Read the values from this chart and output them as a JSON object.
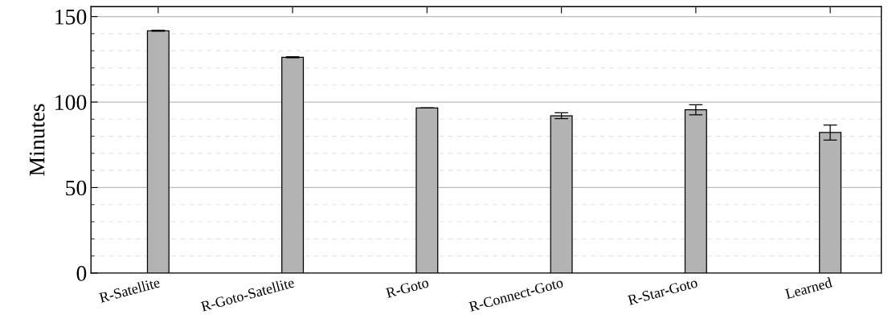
{
  "chart_data": {
    "type": "bar",
    "ylabel": "Minutes",
    "categories": [
      "R-Satellite",
      "R-Goto-Satellite",
      "R-Goto",
      "R-Connect-Goto",
      "R-Star-Goto",
      "Learned"
    ],
    "values": [
      141.7,
      126.2,
      96.5,
      92,
      95.5,
      82.2
    ],
    "errors": [
      0.3,
      0.3,
      null,
      1.7,
      2.9,
      4.4
    ],
    "color": "#b3b3b3",
    "ylim": [
      0,
      155.8
    ],
    "yticks": [
      0,
      50,
      100,
      150
    ],
    "grid": "y"
  }
}
